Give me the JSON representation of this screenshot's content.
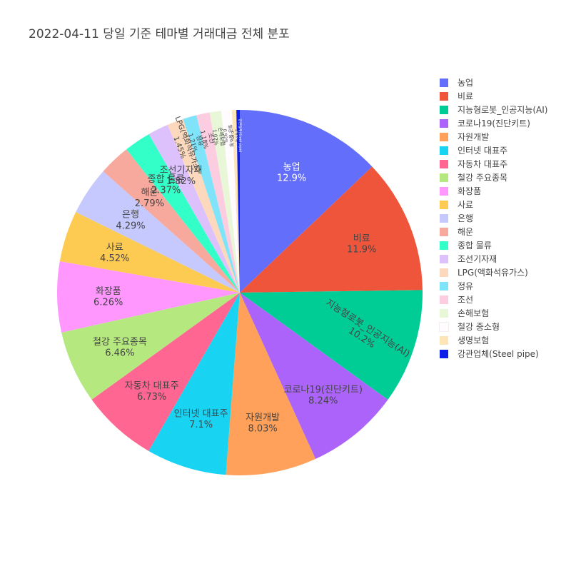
{
  "chart_data": {
    "type": "pie",
    "title": "2022-04-11 당일 기준 테마별 거래대금 전체 분포",
    "direction": "clockwise",
    "start_angle": "12 o'clock",
    "sort": "descending",
    "legend_position": "right",
    "slices": [
      {
        "label": "농업",
        "percent": 12.9,
        "color": "#636efa",
        "text": "12.9%"
      },
      {
        "label": "비료",
        "percent": 11.9,
        "color": "#EF553B",
        "text": "11.9%"
      },
      {
        "label": "지능형로봇_인공지능(AI)",
        "percent": 10.2,
        "color": "#00cc96",
        "text": "10.2%"
      },
      {
        "label": "코로나19(진단키트)",
        "percent": 8.24,
        "color": "#ab63fa",
        "text": "8.24%"
      },
      {
        "label": "자원개발",
        "percent": 8.03,
        "color": "#FFA15A",
        "text": "8.03%"
      },
      {
        "label": "인터넷 대표주",
        "percent": 7.1,
        "color": "#19d3f3",
        "text": "7.1%"
      },
      {
        "label": "자동차 대표주",
        "percent": 6.73,
        "color": "#FF6692",
        "text": "6.73%"
      },
      {
        "label": "철강 주요종목",
        "percent": 6.46,
        "color": "#B6E880",
        "text": "6.46%"
      },
      {
        "label": "화장품",
        "percent": 6.26,
        "color": "#FF97FF",
        "text": "6.26%"
      },
      {
        "label": "사료",
        "percent": 4.52,
        "color": "#FECB52",
        "text": "4.52%"
      },
      {
        "label": "은행",
        "percent": 4.29,
        "color": "#c6c9fd",
        "text": "4.29%"
      },
      {
        "label": "해운",
        "percent": 2.79,
        "color": "#f7a99d",
        "text": "2.79%"
      },
      {
        "label": "종합 물류",
        "percent": 2.37,
        "color": "#33ffc8",
        "text": "2.37%"
      },
      {
        "label": "조선기자재",
        "percent": 1.82,
        "color": "#ddc1fd",
        "text": "1.82%"
      },
      {
        "label": "LPG(액화석유가스)",
        "percent": 1.45,
        "color": "#fcd9bd",
        "text": "1.45%"
      },
      {
        "label": "정유",
        "percent": 1.21,
        "color": "#7fe4f9",
        "text": "1.21%"
      },
      {
        "label": "조선",
        "percent": 1.18,
        "color": "#fccde0",
        "text": "1.18%"
      },
      {
        "label": "손해보험",
        "percent": 1.02,
        "color": "#e8f7d8",
        "text": "1.02%"
      },
      {
        "label": "철강 중소형",
        "percent": 0.92,
        "color": "#fffbff",
        "text": "0.92%"
      },
      {
        "label": "생명보험",
        "percent": 0.4,
        "color": "#fde5b8",
        "text": "0.4%"
      },
      {
        "label": "강관업체(Steel pipe)",
        "percent": 0.3,
        "color": "#0d1ee8",
        "text": "0.3%"
      }
    ]
  }
}
